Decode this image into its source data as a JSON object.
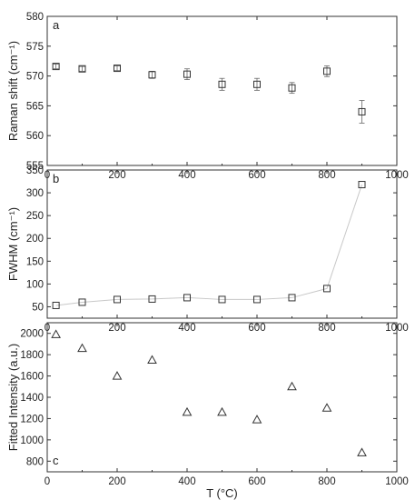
{
  "chart_data": [
    {
      "type": "scatter",
      "panel_label": "a",
      "xlabel": "",
      "ylabel": "Raman shift (cm⁻¹)",
      "xlim": [
        0,
        1000
      ],
      "ylim": [
        555,
        580
      ],
      "xticks": [
        0,
        200,
        400,
        600,
        800,
        1000
      ],
      "yticks": [
        555,
        560,
        565,
        570,
        575,
        580
      ],
      "marker": "square",
      "series": [
        {
          "x": [
            25,
            100,
            200,
            300,
            400,
            500,
            600,
            700,
            800,
            900
          ],
          "y": [
            571.6,
            571.2,
            571.3,
            570.2,
            570.3,
            568.6,
            568.6,
            568.0,
            570.8,
            564.0
          ],
          "error": [
            0.4,
            0.4,
            0.4,
            0.6,
            0.9,
            1.0,
            1.0,
            0.9,
            0.9,
            1.9
          ]
        }
      ]
    },
    {
      "type": "line",
      "panel_label": "b",
      "xlabel": "",
      "ylabel": "FWHM (cm⁻¹)",
      "xlim": [
        0,
        1000
      ],
      "ylim": [
        25,
        350
      ],
      "xticks": [
        0,
        200,
        400,
        600,
        800,
        1000
      ],
      "yticks": [
        50,
        100,
        150,
        200,
        250,
        300,
        350
      ],
      "marker": "square",
      "series": [
        {
          "x": [
            25,
            100,
            200,
            300,
            400,
            500,
            600,
            700,
            800,
            900
          ],
          "y": [
            53,
            60,
            66,
            67,
            70,
            66,
            66,
            70,
            90,
            318
          ]
        }
      ]
    },
    {
      "type": "scatter",
      "panel_label": "c",
      "xlabel": "T (°C)",
      "ylabel": "Fitted Intensity (a.u.)",
      "xlim": [
        0,
        1000
      ],
      "ylim": [
        700,
        2100
      ],
      "xticks": [
        0,
        200,
        400,
        600,
        800,
        1000
      ],
      "yticks": [
        800,
        1000,
        1200,
        1400,
        1600,
        1800,
        2000
      ],
      "marker": "triangle",
      "series": [
        {
          "x": [
            25,
            100,
            200,
            300,
            400,
            500,
            600,
            700,
            800,
            900
          ],
          "y": [
            1990,
            1860,
            1600,
            1750,
            1260,
            1260,
            1190,
            1500,
            1300,
            880
          ]
        }
      ]
    }
  ]
}
